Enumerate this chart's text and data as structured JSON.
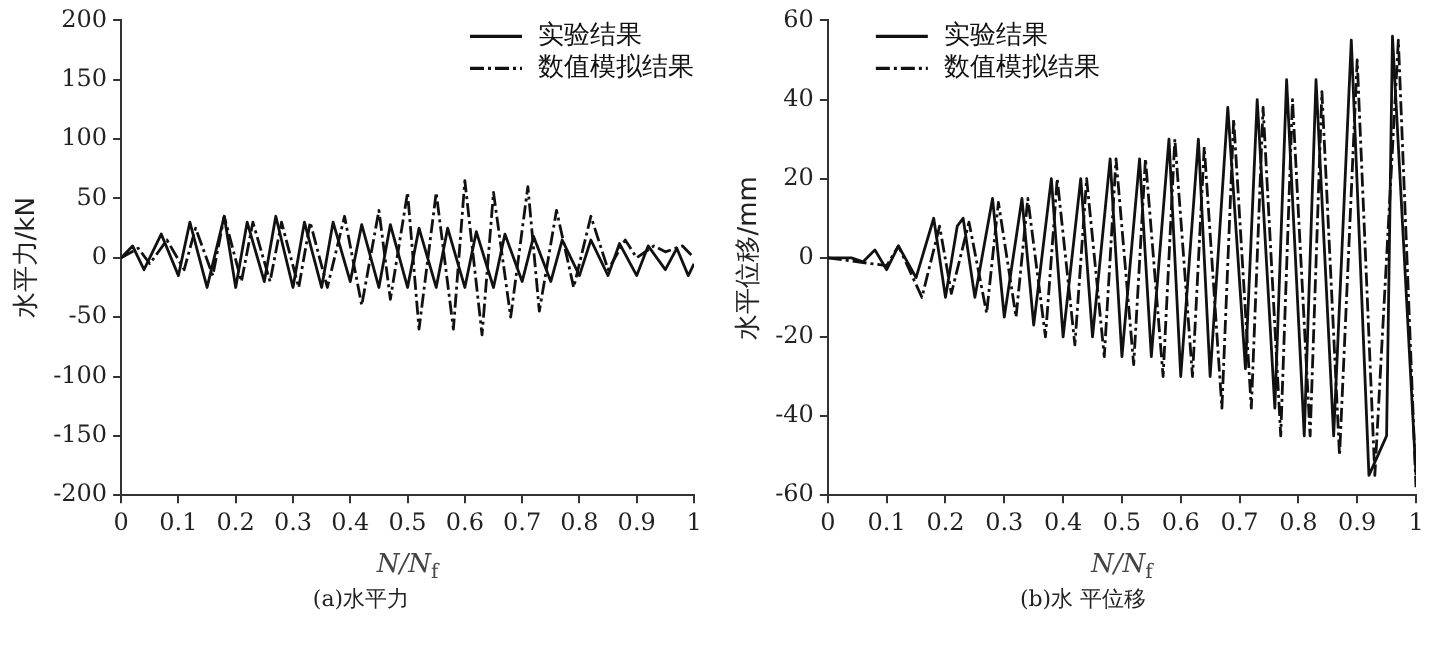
{
  "chart_data": [
    {
      "type": "line",
      "title": "(a)水平力",
      "xlabel": "N/N$_{f}$",
      "ylabel": "水平力/kN",
      "xlim": [
        0,
        1
      ],
      "xticks": [
        0,
        0.1,
        0.2,
        0.3,
        0.4,
        0.5,
        0.6,
        0.7,
        0.8,
        0.9,
        1
      ],
      "ylim": [
        -200,
        200
      ],
      "yticks": [
        -200,
        -150,
        -100,
        -50,
        0,
        50,
        100,
        150,
        200
      ],
      "grid": false,
      "legend": "top right",
      "marker": "none",
      "series": [
        {
          "name": "实验结果",
          "color": "#111111",
          "line_style": "solid",
          "x": [
            0,
            0.02,
            0.04,
            0.07,
            0.1,
            0.12,
            0.15,
            0.18,
            0.2,
            0.22,
            0.25,
            0.27,
            0.3,
            0.32,
            0.35,
            0.37,
            0.4,
            0.42,
            0.45,
            0.47,
            0.5,
            0.52,
            0.55,
            0.57,
            0.6,
            0.62,
            0.65,
            0.67,
            0.7,
            0.72,
            0.75,
            0.77,
            0.8,
            0.82,
            0.85,
            0.87,
            0.9,
            0.92,
            0.95,
            0.97,
            0.99,
            1
          ],
          "values": [
            0,
            10,
            -10,
            20,
            -15,
            30,
            -25,
            35,
            -25,
            30,
            -20,
            35,
            -25,
            30,
            -25,
            30,
            -20,
            28,
            -25,
            28,
            -25,
            25,
            -25,
            25,
            -25,
            22,
            -25,
            20,
            -20,
            18,
            -20,
            15,
            -15,
            15,
            -15,
            12,
            -15,
            10,
            -10,
            8,
            -15,
            -5
          ]
        },
        {
          "name": "数值模拟结果",
          "color": "#111111",
          "line_style": "dashed",
          "x": [
            0,
            0.03,
            0.05,
            0.08,
            0.11,
            0.13,
            0.16,
            0.18,
            0.21,
            0.23,
            0.26,
            0.28,
            0.31,
            0.33,
            0.36,
            0.39,
            0.42,
            0.45,
            0.47,
            0.5,
            0.52,
            0.55,
            0.58,
            0.6,
            0.63,
            0.65,
            0.68,
            0.71,
            0.73,
            0.76,
            0.79,
            0.82,
            0.85,
            0.88,
            0.9,
            0.93,
            0.95,
            0.98,
            1
          ],
          "values": [
            0,
            8,
            -5,
            15,
            -10,
            25,
            -15,
            35,
            -20,
            30,
            -20,
            30,
            -25,
            30,
            -25,
            35,
            -40,
            40,
            -35,
            55,
            -60,
            55,
            -60,
            65,
            -65,
            55,
            -50,
            60,
            -45,
            40,
            -25,
            35,
            -10,
            15,
            0,
            10,
            5,
            10,
            0
          ]
        }
      ]
    },
    {
      "type": "line",
      "title": "(b)水 平位移",
      "xlabel": "N/N$_{f}$",
      "ylabel": "水平位移/mm",
      "xlim": [
        0,
        1
      ],
      "xticks": [
        0,
        0.1,
        0.2,
        0.3,
        0.4,
        0.5,
        0.6,
        0.7,
        0.8,
        0.9,
        1
      ],
      "ylim": [
        -60,
        60
      ],
      "yticks": [
        -60,
        -40,
        -20,
        0,
        20,
        40,
        60
      ],
      "grid": false,
      "legend": "top left",
      "marker": "none",
      "series": [
        {
          "name": "实验结果",
          "color": "#111111",
          "line_style": "solid",
          "x": [
            0,
            0.04,
            0.06,
            0.08,
            0.1,
            0.12,
            0.15,
            0.18,
            0.2,
            0.22,
            0.23,
            0.25,
            0.28,
            0.3,
            0.33,
            0.35,
            0.38,
            0.4,
            0.43,
            0.45,
            0.48,
            0.5,
            0.53,
            0.55,
            0.58,
            0.6,
            0.63,
            0.65,
            0.68,
            0.71,
            0.73,
            0.76,
            0.78,
            0.81,
            0.83,
            0.86,
            0.89,
            0.92,
            0.95,
            0.96,
            1
          ],
          "values": [
            0,
            0,
            -1,
            2,
            -3,
            3,
            -5,
            10,
            -10,
            8,
            10,
            -10,
            15,
            -15,
            15,
            -17,
            20,
            -20,
            20,
            -20,
            25,
            -25,
            25,
            -25,
            30,
            -30,
            30,
            -30,
            38,
            -28,
            40,
            -38,
            45,
            -45,
            45,
            -45,
            55,
            -55,
            -45,
            56,
            -55
          ]
        },
        {
          "name": "数值模拟结果",
          "color": "#111111",
          "line_style": "dashed",
          "x": [
            0,
            0.1,
            0.12,
            0.16,
            0.19,
            0.21,
            0.24,
            0.27,
            0.29,
            0.32,
            0.34,
            0.37,
            0.39,
            0.42,
            0.44,
            0.47,
            0.49,
            0.52,
            0.54,
            0.57,
            0.59,
            0.62,
            0.64,
            0.67,
            0.69,
            0.72,
            0.74,
            0.77,
            0.79,
            0.82,
            0.84,
            0.87,
            0.9,
            0.93,
            0.97,
            1
          ],
          "values": [
            0,
            -2,
            3,
            -10,
            8,
            -9,
            9,
            -14,
            14,
            -15,
            15,
            -20,
            20,
            -22,
            20,
            -25,
            25,
            -27,
            25,
            -30,
            30,
            -30,
            28,
            -38,
            35,
            -38,
            38,
            -45,
            40,
            -45,
            42,
            -50,
            50,
            -55,
            55,
            -58
          ]
        }
      ]
    }
  ]
}
